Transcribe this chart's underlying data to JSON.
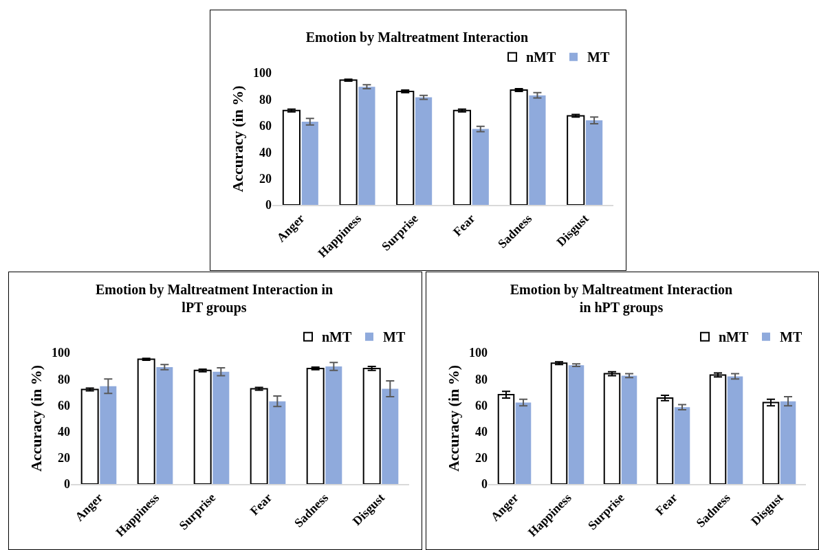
{
  "chart_data": [
    {
      "type": "bar",
      "title": "Emotion by Maltreatment Interaction",
      "ylabel": "Accuracy (in %)",
      "categories": [
        "Anger",
        "Happiness",
        "Surprise",
        "Fear",
        "Sadness",
        "Disgust"
      ],
      "series": [
        {
          "name": "nMT",
          "color": "#ffffff",
          "values": [
            71.5,
            94.5,
            86,
            71.5,
            87,
            67.5
          ],
          "errors": [
            1,
            0.7,
            1,
            1,
            1,
            1
          ]
        },
        {
          "name": "MT",
          "color": "#8faadc",
          "values": [
            63,
            89.5,
            81.5,
            57.5,
            83,
            64
          ],
          "errors": [
            2.5,
            1.5,
            1.5,
            2,
            2,
            2.5
          ]
        }
      ],
      "ylim": [
        0,
        100
      ],
      "yticks": [
        0,
        20,
        40,
        60,
        80,
        100
      ],
      "grid": false,
      "legend": "top right"
    },
    {
      "type": "bar",
      "title": "Emotion by Maltreatment Interaction in lPT groups",
      "ylabel": "Accuracy (in %)",
      "categories": [
        "Anger",
        "Happiness",
        "Surprise",
        "Fear",
        "Sadness",
        "Disgust"
      ],
      "series": [
        {
          "name": "nMT",
          "color": "#ffffff",
          "values": [
            72,
            95,
            86.5,
            72.5,
            88,
            88
          ],
          "errors": [
            1,
            0.7,
            1,
            1,
            1,
            1.5
          ]
        },
        {
          "name": "MT",
          "color": "#8faadc",
          "values": [
            74.5,
            89,
            85.5,
            63,
            89.5,
            72.5
          ],
          "errors": [
            5.5,
            2,
            3,
            4,
            3,
            6
          ]
        }
      ],
      "ylim": [
        0,
        100
      ],
      "yticks": [
        0,
        20,
        40,
        60,
        80,
        100
      ],
      "grid": false,
      "legend": "top right"
    },
    {
      "type": "bar",
      "title": "Emotion by Maltreatment Interaction in hPT groups",
      "ylabel": "Accuracy (in %)",
      "categories": [
        "Anger",
        "Happiness",
        "Surprise",
        "Fear",
        "Sadness",
        "Disgust"
      ],
      "series": [
        {
          "name": "nMT",
          "color": "#ffffff",
          "values": [
            68,
            92,
            84,
            65.5,
            83,
            62
          ],
          "errors": [
            2.5,
            1,
            1.5,
            2,
            1.5,
            2.5
          ]
        },
        {
          "name": "MT",
          "color": "#8faadc",
          "values": [
            62,
            90.5,
            82.5,
            58.5,
            82,
            63
          ],
          "errors": [
            2.5,
            1,
            1.5,
            2,
            2,
            3.5
          ]
        }
      ],
      "ylim": [
        0,
        100
      ],
      "yticks": [
        0,
        20,
        40,
        60,
        80,
        100
      ],
      "grid": false,
      "legend": "top right"
    }
  ]
}
